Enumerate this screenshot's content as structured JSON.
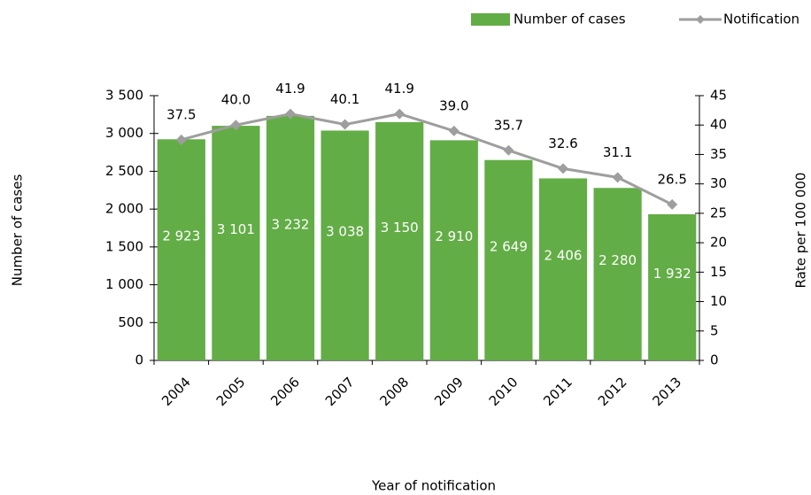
{
  "chart_data": {
    "type": "bar",
    "categories": [
      "2004",
      "2005",
      "2006",
      "2007",
      "2008",
      "2009",
      "2010",
      "2011",
      "2012",
      "2013"
    ],
    "series": [
      {
        "name": "Number of cases",
        "color": "#63ad47",
        "type": "bar",
        "values": [
          2923,
          3101,
          3232,
          3038,
          3150,
          2910,
          2649,
          2406,
          2280,
          1932
        ],
        "value_labels": [
          "2 923",
          "3 101",
          "3 232",
          "3 038",
          "3 150",
          "2 910",
          "2 649",
          "2 406",
          "2 280",
          "1 932"
        ]
      },
      {
        "name": "Notification",
        "color": "#9e9e9e",
        "type": "line",
        "axis": "y2",
        "values": [
          37.5,
          40.0,
          41.9,
          40.1,
          41.9,
          39.0,
          35.7,
          32.6,
          31.1,
          26.5
        ],
        "value_labels": [
          "37.5",
          "40.0",
          "41.9",
          "40.1",
          "41.9",
          "39.0",
          "35.7",
          "32.6",
          "31.1",
          "26.5"
        ]
      }
    ],
    "ylabel": "Number of cases",
    "y2label": "Rate per 100 000",
    "xlabel": "Year of notification",
    "annotation": ",",
    "ylim": [
      0,
      3500
    ],
    "yticks": [
      0,
      500,
      {
        "value": 1000,
        "label": "1 000"
      },
      {
        "value": 1500,
        "label": "1 500"
      },
      {
        "value": 2000,
        "label": "2 000"
      },
      {
        "value": 2500,
        "label": "2 500"
      },
      {
        "value": 3000,
        "label": "3 000"
      },
      {
        "value": 3500,
        "label": "3 500"
      }
    ],
    "y2lim": [
      0,
      45
    ],
    "y2ticks": [
      0,
      5,
      10,
      15,
      20,
      25,
      30,
      35,
      40,
      45
    ],
    "legend": "top-right",
    "grid": false
  }
}
